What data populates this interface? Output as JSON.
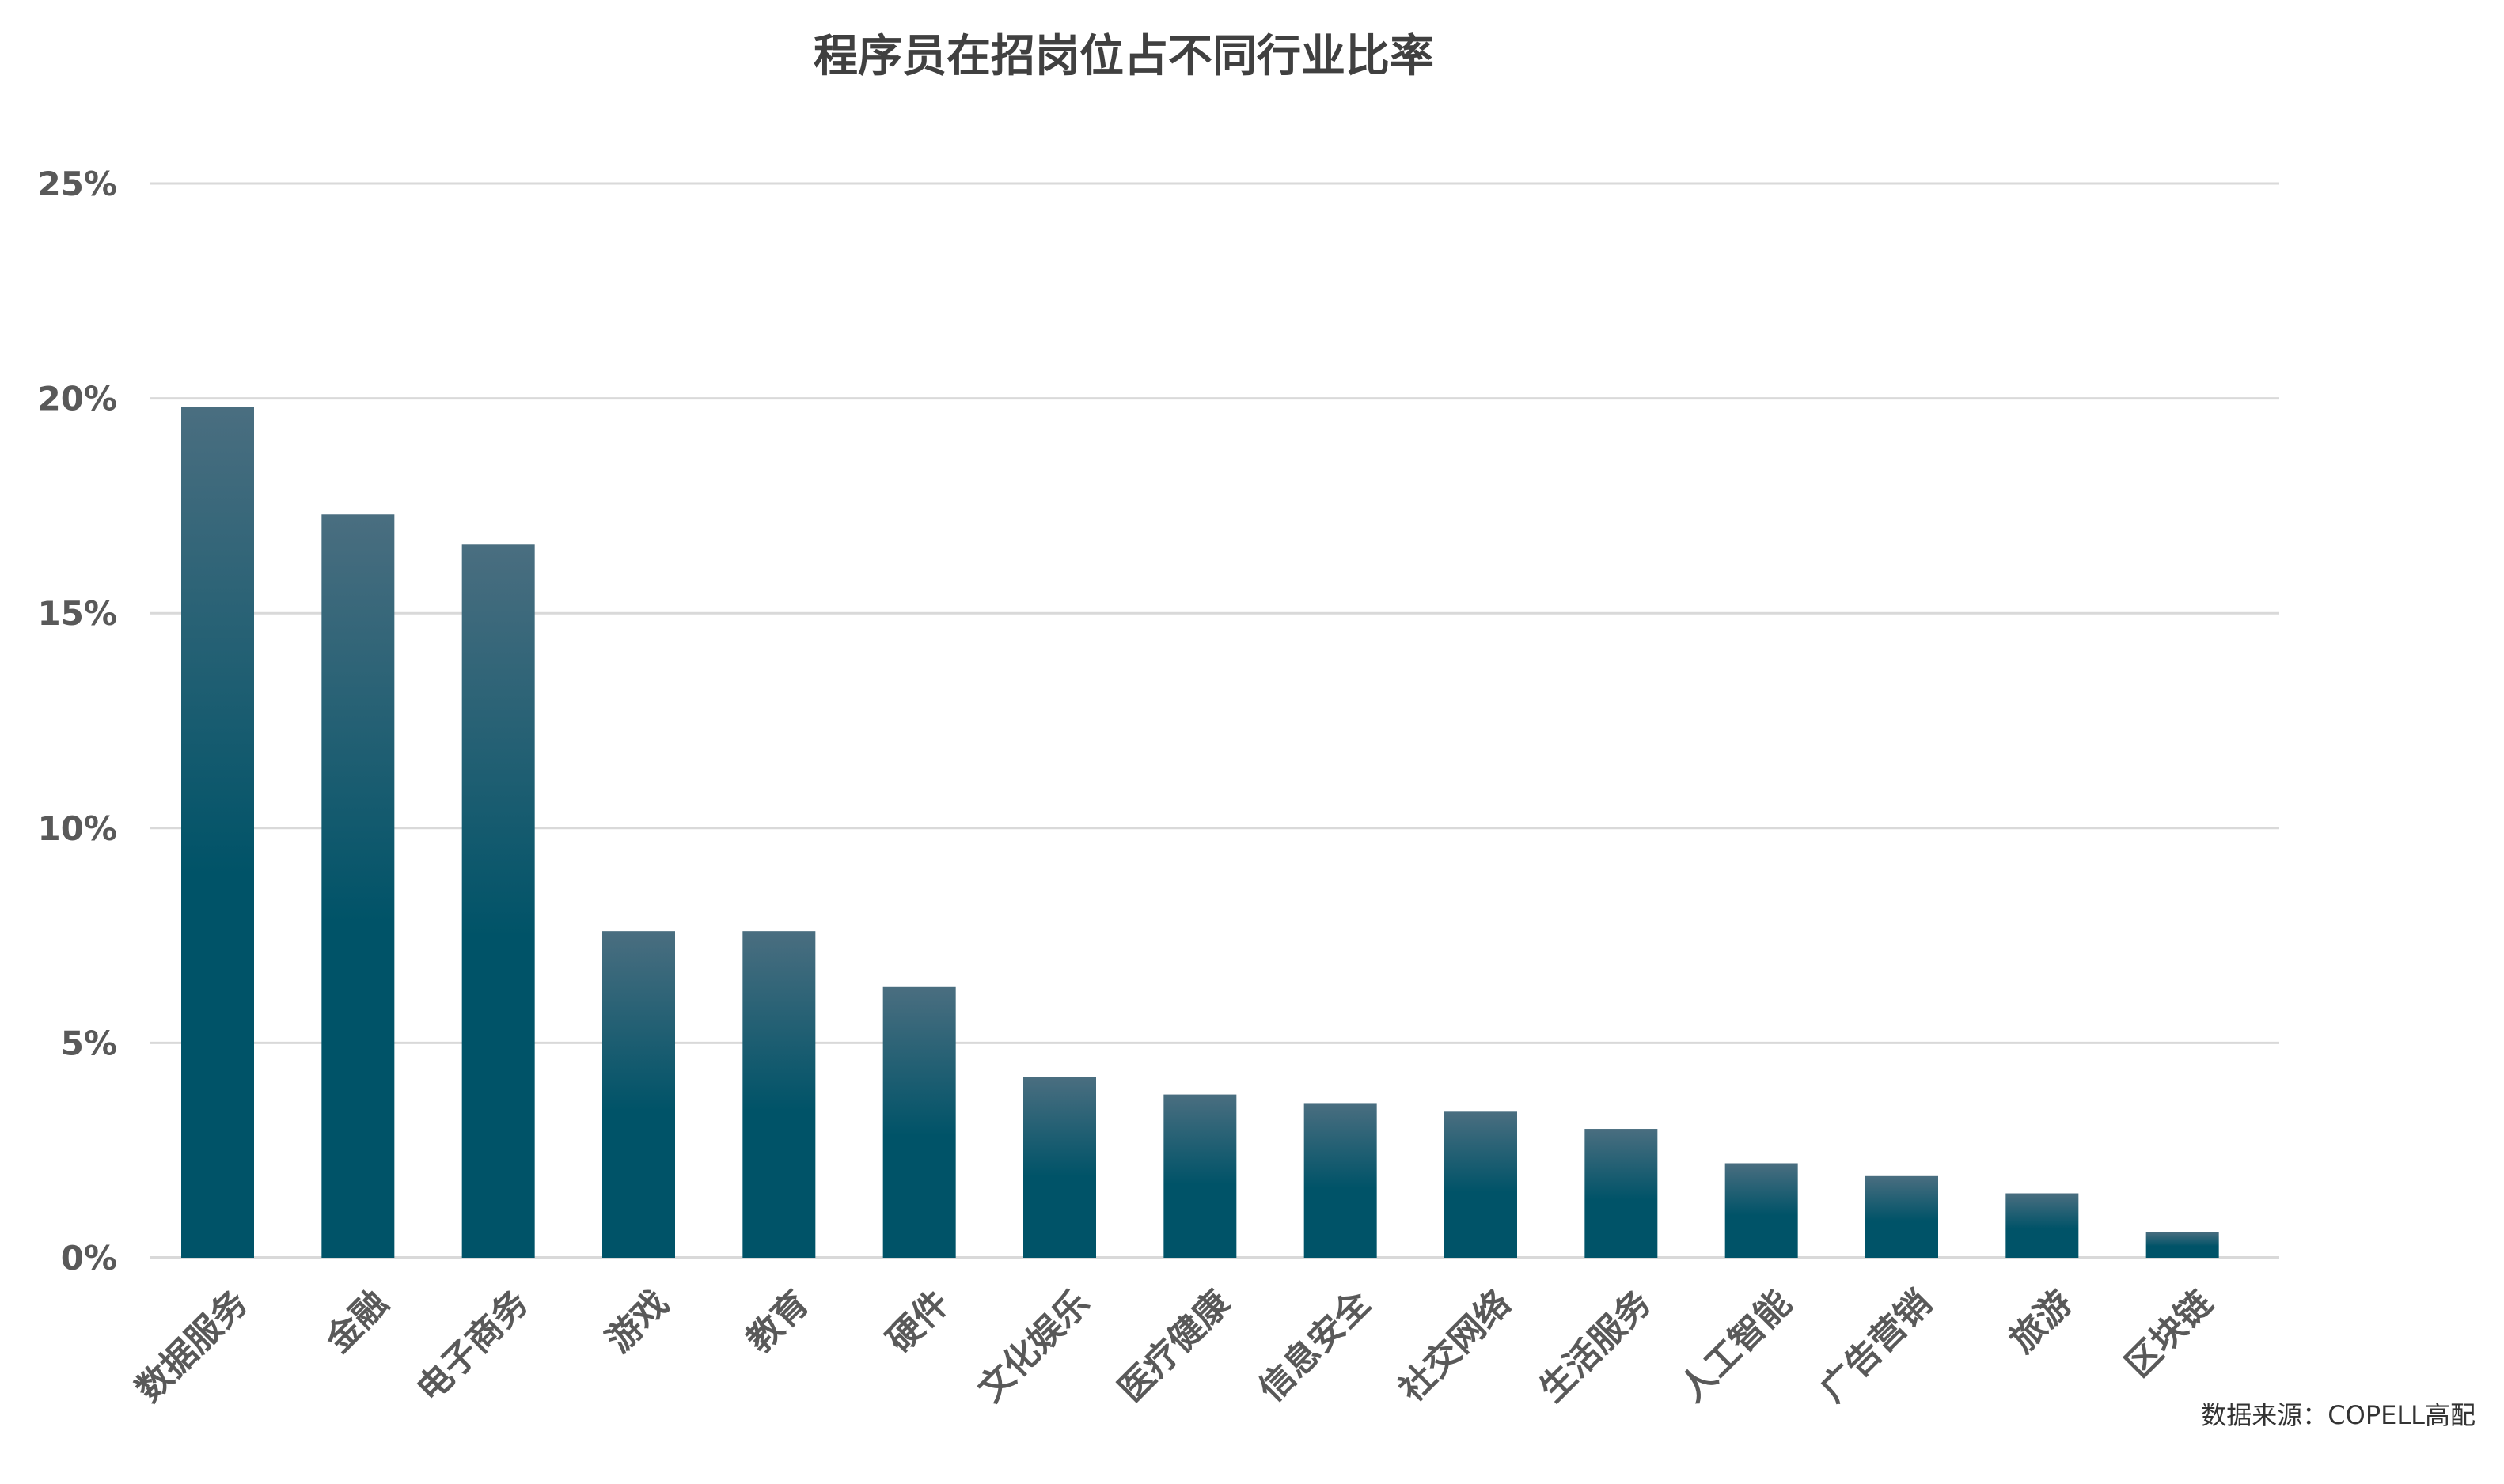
{
  "chart_data": {
    "type": "bar",
    "title": "程序员在招岗位占不同行业比率",
    "categories": [
      "数据服务",
      "金融",
      "电子商务",
      "游戏",
      "教育",
      "硬件",
      "文化娱乐",
      "医疗健康",
      "信息安全",
      "社交网络",
      "生活服务",
      "人工智能",
      "广告营销",
      "旅游",
      "区块链"
    ],
    "values": [
      19.8,
      17.3,
      16.6,
      7.6,
      7.6,
      6.3,
      4.2,
      3.8,
      3.6,
      3.4,
      3.0,
      2.2,
      1.9,
      1.5,
      0.6
    ],
    "ylim": [
      0,
      25
    ],
    "yticks": [
      "0%",
      "5%",
      "10%",
      "15%",
      "20%",
      "25%"
    ],
    "ytick_values": [
      0,
      5,
      10,
      15,
      20,
      25
    ],
    "grid": true,
    "legend": "none",
    "bar_gradient": {
      "top": "#4a6e80",
      "bottom": "#005368"
    },
    "source": "数据来源：COPELL高配"
  }
}
